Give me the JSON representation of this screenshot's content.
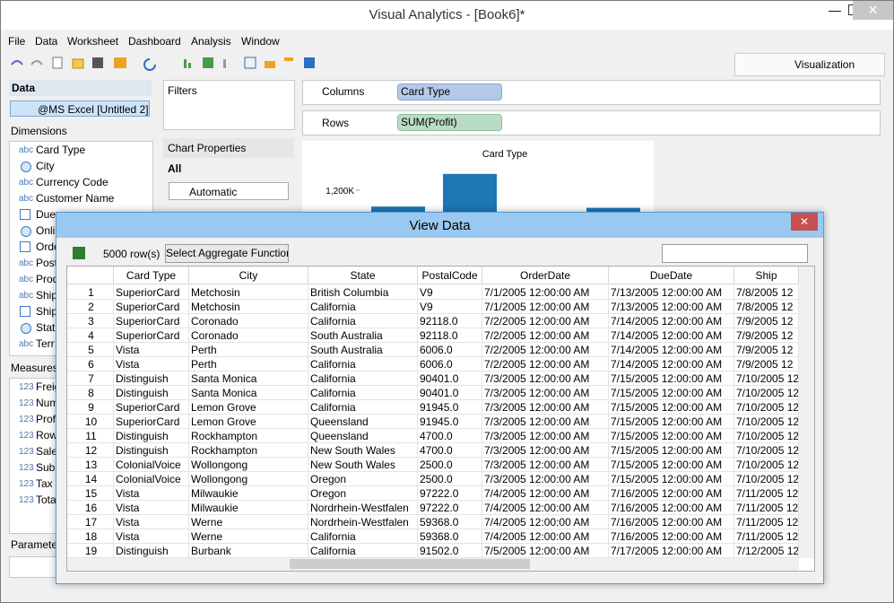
{
  "window": {
    "title": "Visual Analytics - [Book6]*"
  },
  "menu": [
    "File",
    "Data",
    "Worksheet",
    "Dashboard",
    "Analysis",
    "Window"
  ],
  "visualization_tab": "Visualization",
  "data_panel": {
    "title": "Data",
    "source": "@MS Excel [Untitled 2]",
    "dimensions_label": "Dimensions",
    "dimensions": [
      {
        "icon_text": "abc",
        "name": "Card Type"
      },
      {
        "icon": "globe",
        "name": "City"
      },
      {
        "icon_text": "abc",
        "name": "Currency Code"
      },
      {
        "icon_text": "abc",
        "name": "Customer Name"
      },
      {
        "icon": "calendar",
        "name": "Due"
      },
      {
        "icon": "globe",
        "name": "Onli"
      },
      {
        "icon": "calendar",
        "name": "Orde"
      },
      {
        "icon_text": "abc",
        "name": "Post"
      },
      {
        "icon_text": "abc",
        "name": "Prod"
      },
      {
        "icon_text": "abc",
        "name": "Ship"
      },
      {
        "icon": "calendar",
        "name": "Ship"
      },
      {
        "icon": "globe",
        "name": "Stat"
      },
      {
        "icon_text": "abc",
        "name": "Terr"
      }
    ],
    "measures_label": "Measures",
    "measures": [
      {
        "icon_text": "123",
        "name": "Freig"
      },
      {
        "icon_text": "123",
        "name": "Num"
      },
      {
        "icon_text": "123",
        "name": "Prof"
      },
      {
        "icon_text": "123",
        "name": "Row"
      },
      {
        "icon_text": "123",
        "name": "Sale"
      },
      {
        "icon_text": "123",
        "name": "Sub"
      },
      {
        "icon_text": "123",
        "name": "Tax"
      },
      {
        "icon_text": "123",
        "name": "Tota"
      }
    ],
    "parameters_label": "Parameter"
  },
  "filters": {
    "title": "Filters"
  },
  "chart_properties": {
    "title": "Chart Properties",
    "tab": "All",
    "chart_type": "Automatic"
  },
  "shelves": {
    "columns_label": "Columns",
    "columns_pill": "Card Type",
    "rows_label": "Rows",
    "rows_pill": "SUM(Profit)"
  },
  "chart": {
    "title": "Card Type",
    "color": "#1f77b4",
    "ylim": [
      0,
      1400000
    ],
    "yticks": [
      {
        "value": 1200000,
        "label": "1,200K"
      }
    ],
    "values": [
      1070000,
      1330000,
      null,
      1060000
    ]
  },
  "view_data": {
    "title": "View Data",
    "row_count": "5000 row(s)",
    "button": "Select Aggregate Function",
    "columns": [
      "Card Type",
      "City",
      "State",
      "PostalCode",
      "OrderDate",
      "DueDate",
      "Ship"
    ],
    "rows": [
      [
        "1",
        "SuperiorCard",
        "Metchosin",
        "British Columbia",
        "V9",
        "7/1/2005 12:00:00 AM",
        "7/13/2005 12:00:00 AM",
        "7/8/2005 12"
      ],
      [
        "2",
        "SuperiorCard",
        "Metchosin",
        "California",
        "V9",
        "7/1/2005 12:00:00 AM",
        "7/13/2005 12:00:00 AM",
        "7/8/2005 12"
      ],
      [
        "3",
        "SuperiorCard",
        "Coronado",
        "California",
        "92118.0",
        "7/2/2005 12:00:00 AM",
        "7/14/2005 12:00:00 AM",
        "7/9/2005 12"
      ],
      [
        "4",
        "SuperiorCard",
        "Coronado",
        "South Australia",
        "92118.0",
        "7/2/2005 12:00:00 AM",
        "7/14/2005 12:00:00 AM",
        "7/9/2005 12"
      ],
      [
        "5",
        "Vista",
        "Perth",
        "South Australia",
        "6006.0",
        "7/2/2005 12:00:00 AM",
        "7/14/2005 12:00:00 AM",
        "7/9/2005 12"
      ],
      [
        "6",
        "Vista",
        "Perth",
        "California",
        "6006.0",
        "7/2/2005 12:00:00 AM",
        "7/14/2005 12:00:00 AM",
        "7/9/2005 12"
      ],
      [
        "7",
        "Distinguish",
        "Santa Monica",
        "California",
        "90401.0",
        "7/3/2005 12:00:00 AM",
        "7/15/2005 12:00:00 AM",
        "7/10/2005 12"
      ],
      [
        "8",
        "Distinguish",
        "Santa Monica",
        "California",
        "90401.0",
        "7/3/2005 12:00:00 AM",
        "7/15/2005 12:00:00 AM",
        "7/10/2005 12"
      ],
      [
        "9",
        "SuperiorCard",
        "Lemon Grove",
        "California",
        "91945.0",
        "7/3/2005 12:00:00 AM",
        "7/15/2005 12:00:00 AM",
        "7/10/2005 12"
      ],
      [
        "10",
        "SuperiorCard",
        "Lemon Grove",
        "Queensland",
        "91945.0",
        "7/3/2005 12:00:00 AM",
        "7/15/2005 12:00:00 AM",
        "7/10/2005 12"
      ],
      [
        "11",
        "Distinguish",
        "Rockhampton",
        "Queensland",
        "4700.0",
        "7/3/2005 12:00:00 AM",
        "7/15/2005 12:00:00 AM",
        "7/10/2005 12"
      ],
      [
        "12",
        "Distinguish",
        "Rockhampton",
        "New South Wales",
        "4700.0",
        "7/3/2005 12:00:00 AM",
        "7/15/2005 12:00:00 AM",
        "7/10/2005 12"
      ],
      [
        "13",
        "ColonialVoice",
        "Wollongong",
        "New South Wales",
        "2500.0",
        "7/3/2005 12:00:00 AM",
        "7/15/2005 12:00:00 AM",
        "7/10/2005 12"
      ],
      [
        "14",
        "ColonialVoice",
        "Wollongong",
        "Oregon",
        "2500.0",
        "7/3/2005 12:00:00 AM",
        "7/15/2005 12:00:00 AM",
        "7/10/2005 12"
      ],
      [
        "15",
        "Vista",
        "Milwaukie",
        "Oregon",
        "97222.0",
        "7/4/2005 12:00:00 AM",
        "7/16/2005 12:00:00 AM",
        "7/11/2005 12"
      ],
      [
        "16",
        "Vista",
        "Milwaukie",
        "Nordrhein-Westfalen",
        "97222.0",
        "7/4/2005 12:00:00 AM",
        "7/16/2005 12:00:00 AM",
        "7/11/2005 12"
      ],
      [
        "17",
        "Vista",
        "Werne",
        "Nordrhein-Westfalen",
        "59368.0",
        "7/4/2005 12:00:00 AM",
        "7/16/2005 12:00:00 AM",
        "7/11/2005 12"
      ],
      [
        "18",
        "Vista",
        "Werne",
        "California",
        "59368.0",
        "7/4/2005 12:00:00 AM",
        "7/16/2005 12:00:00 AM",
        "7/11/2005 12"
      ],
      [
        "19",
        "Distinguish",
        "Burbank",
        "California",
        "91502.0",
        "7/5/2005 12:00:00 AM",
        "7/17/2005 12:00:00 AM",
        "7/12/2005 12"
      ]
    ]
  }
}
